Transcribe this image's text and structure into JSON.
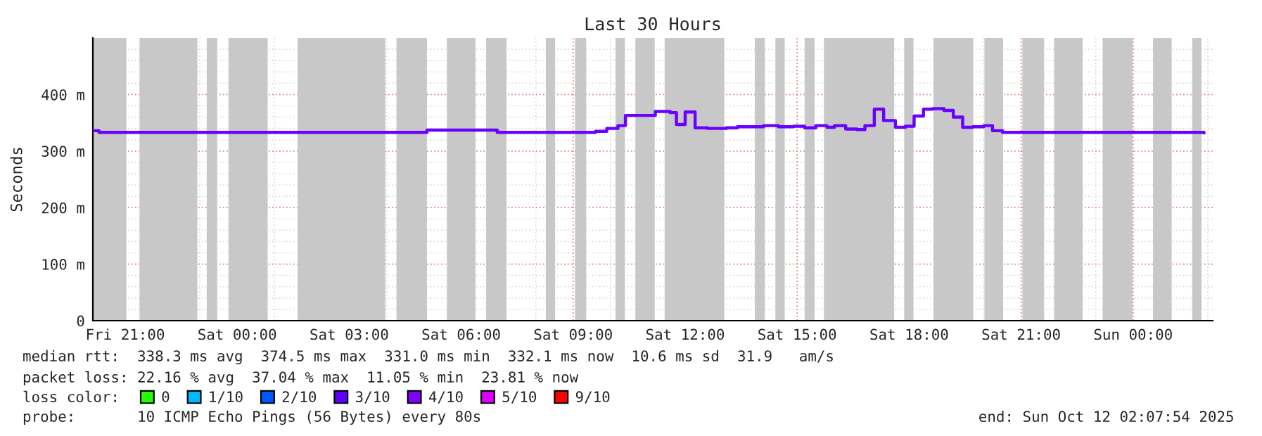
{
  "chart_data": {
    "type": "step",
    "title": "Last 30 Hours",
    "ylabel": "Seconds",
    "xlim": [
      "2025-10-10T20:08",
      "2025-10-12T02:08"
    ],
    "ylim": [
      0,
      500
    ],
    "xticks": [
      {
        "value": "2025-10-10T21:00",
        "label": "Fri 21:00"
      },
      {
        "value": "2025-10-11T00:00",
        "label": "Sat 00:00"
      },
      {
        "value": "2025-10-11T03:00",
        "label": "Sat 03:00"
      },
      {
        "value": "2025-10-11T06:00",
        "label": "Sat 06:00"
      },
      {
        "value": "2025-10-11T09:00",
        "label": "Sat 09:00"
      },
      {
        "value": "2025-10-11T12:00",
        "label": "Sat 12:00"
      },
      {
        "value": "2025-10-11T15:00",
        "label": "Sat 15:00"
      },
      {
        "value": "2025-10-11T18:00",
        "label": "Sat 18:00"
      },
      {
        "value": "2025-10-11T21:00",
        "label": "Sat 21:00"
      },
      {
        "value": "2025-10-12T00:00",
        "label": "Sun 00:00"
      }
    ],
    "yticks": [
      0,
      {
        "value": 100,
        "label": "100 m"
      },
      {
        "value": 200,
        "label": "200 m"
      },
      {
        "value": 300,
        "label": "300 m"
      },
      {
        "value": 400,
        "label": "400 m"
      }
    ],
    "grid": true,
    "legend": "bottom",
    "legend_title": "loss color:",
    "marker": "none",
    "line_style": "solid",
    "series": [
      {
        "color": "#6a00ff",
        "x": [
          "2025-10-10T20:09",
          "2025-10-10T20:18",
          "2025-10-11T05:05",
          "2025-10-11T06:58",
          "2025-10-11T09:36",
          "2025-10-11T09:54",
          "2025-10-11T10:12",
          "2025-10-11T10:24",
          "2025-10-11T11:12",
          "2025-10-11T11:36",
          "2025-10-11T11:46",
          "2025-10-11T12:00",
          "2025-10-11T12:16",
          "2025-10-11T12:36",
          "2025-10-11T13:06",
          "2025-10-11T13:24",
          "2025-10-11T13:48",
          "2025-10-11T14:06",
          "2025-10-11T14:30",
          "2025-10-11T14:54",
          "2025-10-11T15:12",
          "2025-10-11T15:30",
          "2025-10-11T15:48",
          "2025-10-11T16:00",
          "2025-10-11T16:18",
          "2025-10-11T16:36",
          "2025-10-11T16:49",
          "2025-10-11T17:04",
          "2025-10-11T17:19",
          "2025-10-11T17:38",
          "2025-10-11T17:54",
          "2025-10-11T18:08",
          "2025-10-11T18:23",
          "2025-10-11T18:38",
          "2025-10-11T18:56",
          "2025-10-11T19:11",
          "2025-10-11T19:26",
          "2025-10-11T19:42",
          "2025-10-11T20:00",
          "2025-10-11T20:14",
          "2025-10-11T20:30",
          "2025-10-12T01:54"
        ],
        "values": [
          336,
          333,
          337,
          333,
          335,
          340,
          345,
          363,
          370,
          368,
          347,
          369,
          341,
          340,
          341,
          343,
          343,
          345,
          343,
          344,
          341,
          345,
          342,
          345,
          339,
          338,
          345,
          374,
          354,
          342,
          344,
          362,
          374,
          375,
          372,
          360,
          342,
          343,
          345,
          336,
          333,
          332
        ]
      },
      {
        "name": "0",
        "color": "#26ff00"
      },
      {
        "name": "1/10",
        "color": "#00b8ff"
      },
      {
        "name": "2/10",
        "color": "#0059ff"
      },
      {
        "name": "3/10",
        "color": "#5e00ff"
      },
      {
        "name": "4/10",
        "color": "#7e00ff"
      },
      {
        "name": "5/10",
        "color": "#dd00ff"
      },
      {
        "name": "9/10",
        "color": "#ff0000"
      }
    ],
    "bands": [
      {
        "axis": "x",
        "from": "2025-10-10T20:09",
        "to": "2025-10-10T21:02",
        "color": "#c8c8c8"
      },
      {
        "axis": "x",
        "from": "2025-10-10T21:23",
        "to": "2025-10-10T22:56",
        "color": "#c8c8c8"
      },
      {
        "axis": "x",
        "from": "2025-10-10T23:11",
        "to": "2025-10-10T23:28",
        "color": "#c8c8c8"
      },
      {
        "axis": "x",
        "from": "2025-10-10T23:46",
        "to": "2025-10-11T00:49",
        "color": "#c8c8c8"
      },
      {
        "axis": "x",
        "from": "2025-10-11T01:37",
        "to": "2025-10-11T03:58",
        "color": "#c8c8c8"
      },
      {
        "axis": "x",
        "from": "2025-10-11T04:16",
        "to": "2025-10-11T05:05",
        "color": "#c8c8c8"
      },
      {
        "axis": "x",
        "from": "2025-10-11T05:37",
        "to": "2025-10-11T06:23",
        "color": "#c8c8c8"
      },
      {
        "axis": "x",
        "from": "2025-10-11T06:40",
        "to": "2025-10-11T07:13",
        "color": "#c8c8c8"
      },
      {
        "axis": "x",
        "from": "2025-10-11T08:16",
        "to": "2025-10-11T08:31",
        "color": "#c8c8c8"
      },
      {
        "axis": "x",
        "from": "2025-10-11T09:03",
        "to": "2025-10-11T09:21",
        "color": "#c8c8c8"
      },
      {
        "axis": "x",
        "from": "2025-10-11T10:08",
        "to": "2025-10-11T10:23",
        "color": "#c8c8c8"
      },
      {
        "axis": "x",
        "from": "2025-10-11T10:40",
        "to": "2025-10-11T11:11",
        "color": "#c8c8c8"
      },
      {
        "axis": "x",
        "from": "2025-10-11T11:27",
        "to": "2025-10-11T13:03",
        "color": "#c8c8c8"
      },
      {
        "axis": "x",
        "from": "2025-10-11T13:52",
        "to": "2025-10-11T14:08",
        "color": "#c8c8c8"
      },
      {
        "axis": "x",
        "from": "2025-10-11T14:25",
        "to": "2025-10-11T14:40",
        "color": "#c8c8c8"
      },
      {
        "axis": "x",
        "from": "2025-10-11T15:12",
        "to": "2025-10-11T15:28",
        "color": "#c8c8c8"
      },
      {
        "axis": "x",
        "from": "2025-10-11T15:43",
        "to": "2025-10-11T17:36",
        "color": "#c8c8c8"
      },
      {
        "axis": "x",
        "from": "2025-10-11T17:52",
        "to": "2025-10-11T18:07",
        "color": "#c8c8c8"
      },
      {
        "axis": "x",
        "from": "2025-10-11T18:39",
        "to": "2025-10-11T19:43",
        "color": "#c8c8c8"
      },
      {
        "axis": "x",
        "from": "2025-10-11T20:01",
        "to": "2025-10-11T20:31",
        "color": "#c8c8c8"
      },
      {
        "axis": "x",
        "from": "2025-10-11T21:02",
        "to": "2025-10-11T21:37",
        "color": "#c8c8c8"
      },
      {
        "axis": "x",
        "from": "2025-10-11T21:53",
        "to": "2025-10-11T22:39",
        "color": "#c8c8c8"
      },
      {
        "axis": "x",
        "from": "2025-10-11T23:11",
        "to": "2025-10-11T23:59",
        "color": "#c8c8c8"
      },
      {
        "axis": "x",
        "from": "2025-10-12T00:32",
        "to": "2025-10-12T01:02",
        "color": "#c8c8c8"
      },
      {
        "axis": "x",
        "from": "2025-10-12T01:35",
        "to": "2025-10-12T01:50",
        "color": "#c8c8c8"
      }
    ],
    "annotations": [
      "median rtt:  338.3 ms avg  374.5 ms max  331.0 ms min  332.1 ms now  10.6 ms sd  31.9   am/s",
      "packet loss: 22.16 % avg  37.04 % max  11.05 % min  23.81 % now",
      "probe:       10 ICMP Echo Pings (56 Bytes) every 80s",
      "end: Sun Oct 12 02:07:54 2025"
    ]
  }
}
